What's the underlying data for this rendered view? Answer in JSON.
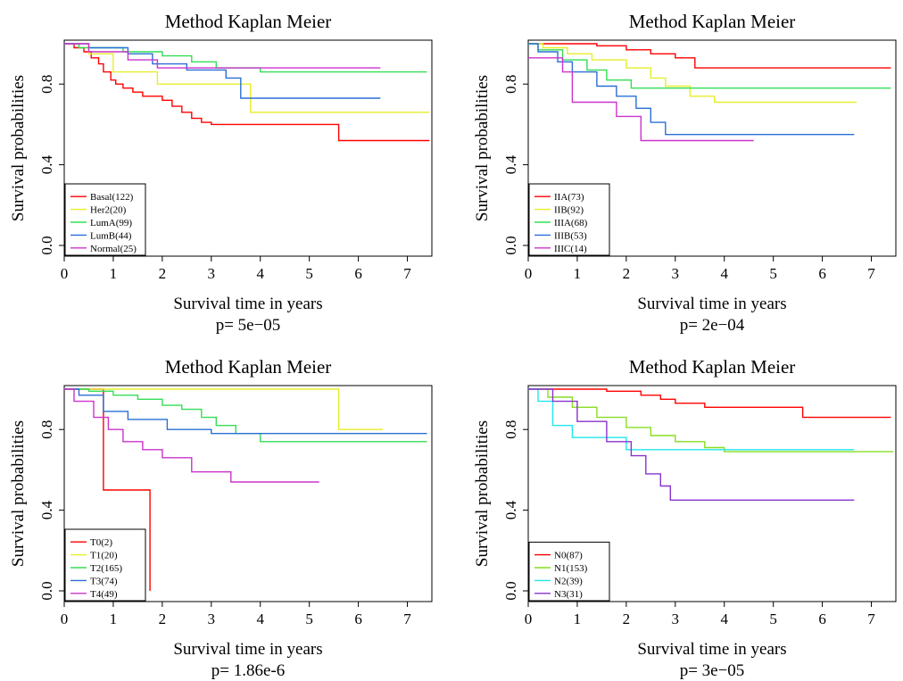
{
  "figure_title": "",
  "chart_data": [
    {
      "type": "line",
      "title": "Method Kaplan Meier",
      "xlabel": "Survival time in years",
      "ylabel": "Survival probabilities",
      "pvalue": "p= 5e−05",
      "xlim": [
        0,
        7.5
      ],
      "ylim": [
        0,
        1
      ],
      "xticks": [
        0,
        1,
        2,
        3,
        4,
        5,
        6,
        7
      ],
      "yticks": [
        0.0,
        0.4,
        0.8
      ],
      "yticklabels": [
        "0.0",
        "0.4",
        "0.8"
      ],
      "legend_position": "bottom-left",
      "series": [
        {
          "name": "Basal(122)",
          "color": "#ff0000",
          "x": [
            0,
            0.2,
            0.4,
            0.55,
            0.7,
            0.8,
            0.95,
            1.05,
            1.2,
            1.4,
            1.6,
            1.8,
            2.0,
            2.2,
            2.4,
            2.6,
            2.8,
            3.0,
            5.6,
            7.45
          ],
          "y": [
            1.0,
            0.98,
            0.96,
            0.93,
            0.9,
            0.86,
            0.82,
            0.8,
            0.78,
            0.76,
            0.74,
            0.74,
            0.72,
            0.69,
            0.66,
            0.63,
            0.61,
            0.6,
            0.52,
            0.52
          ]
        },
        {
          "name": "Her2(20)",
          "color": "#e6ee2a",
          "x": [
            0,
            0.5,
            1.0,
            1.9,
            3.8,
            7.45
          ],
          "y": [
            1.0,
            0.95,
            0.86,
            0.8,
            0.66,
            0.66
          ]
        },
        {
          "name": "LumA(99)",
          "color": "#33dd55",
          "x": [
            0,
            0.3,
            1.2,
            2.0,
            2.6,
            3.1,
            4.0,
            7.4
          ],
          "y": [
            1.0,
            0.98,
            0.96,
            0.94,
            0.91,
            0.88,
            0.86,
            0.86
          ]
        },
        {
          "name": "LumB(44)",
          "color": "#2a6ed6",
          "x": [
            0,
            0.5,
            1.3,
            1.8,
            2.5,
            3.3,
            3.6,
            6.45
          ],
          "y": [
            1.0,
            0.98,
            0.95,
            0.9,
            0.87,
            0.83,
            0.73,
            0.73
          ]
        },
        {
          "name": "Normal(25)",
          "color": "#cc33cc",
          "x": [
            0,
            0.5,
            1.3,
            1.9,
            6.45
          ],
          "y": [
            1.0,
            0.96,
            0.92,
            0.88,
            0.88
          ]
        }
      ]
    },
    {
      "type": "line",
      "title": "Method Kaplan Meier",
      "xlabel": "Survival time in years",
      "ylabel": "Survival probabilities",
      "pvalue": "p= 2e−04",
      "xlim": [
        0,
        7.5
      ],
      "ylim": [
        0,
        1
      ],
      "xticks": [
        0,
        1,
        2,
        3,
        4,
        5,
        6,
        7
      ],
      "yticks": [
        0.0,
        0.4,
        0.8
      ],
      "yticklabels": [
        "0.0",
        "0.4",
        "0.8"
      ],
      "legend_position": "bottom-left",
      "series": [
        {
          "name": "IIA(73)",
          "color": "#ff0000",
          "x": [
            0,
            1.4,
            2.0,
            2.5,
            3.0,
            3.4,
            7.4
          ],
          "y": [
            1.0,
            0.99,
            0.97,
            0.95,
            0.93,
            0.88,
            0.88
          ]
        },
        {
          "name": "IIB(92)",
          "color": "#e6ee2a",
          "x": [
            0,
            0.3,
            0.8,
            1.3,
            2.0,
            2.5,
            2.8,
            3.3,
            3.8,
            6.7
          ],
          "y": [
            1.0,
            0.98,
            0.95,
            0.92,
            0.88,
            0.83,
            0.79,
            0.74,
            0.71,
            0.71
          ]
        },
        {
          "name": "IIIA(68)",
          "color": "#33dd55",
          "x": [
            0,
            0.2,
            0.7,
            1.2,
            1.6,
            2.1,
            7.4
          ],
          "y": [
            1.0,
            0.97,
            0.92,
            0.87,
            0.82,
            0.78,
            0.78
          ]
        },
        {
          "name": "IIIB(53)",
          "color": "#2a6ed6",
          "x": [
            0,
            0.2,
            0.6,
            0.9,
            1.4,
            1.8,
            2.2,
            2.5,
            2.8,
            6.65
          ],
          "y": [
            1.0,
            0.96,
            0.91,
            0.86,
            0.79,
            0.74,
            0.68,
            0.61,
            0.55,
            0.55
          ]
        },
        {
          "name": "IIIC(14)",
          "color": "#cc33cc",
          "x": [
            0,
            0.7,
            0.9,
            1.8,
            2.3,
            4.6
          ],
          "y": [
            0.93,
            0.86,
            0.71,
            0.64,
            0.52,
            0.52
          ]
        }
      ]
    },
    {
      "type": "line",
      "title": "Method Kaplan Meier",
      "xlabel": "Survival time in years",
      "ylabel": "Survival probabilities",
      "pvalue": "p= 1.86e-6",
      "xlim": [
        0,
        7.5
      ],
      "ylim": [
        0,
        1
      ],
      "xticks": [
        0,
        1,
        2,
        3,
        4,
        5,
        6,
        7
      ],
      "yticks": [
        0.0,
        0.4,
        0.8
      ],
      "yticklabels": [
        "0.0",
        "0.4",
        "0.8"
      ],
      "legend_position": "bottom-left",
      "series": [
        {
          "name": "T0(2)",
          "color": "#ff0000",
          "x": [
            0,
            0.8,
            1.75,
            1.75
          ],
          "y": [
            1.0,
            0.5,
            0.0,
            0.0
          ]
        },
        {
          "name": "T1(20)",
          "color": "#e6ee2a",
          "x": [
            0,
            5.6,
            6.5
          ],
          "y": [
            1.0,
            0.8,
            0.8
          ]
        },
        {
          "name": "T2(165)",
          "color": "#33dd55",
          "x": [
            0,
            0.5,
            1.0,
            1.5,
            2.0,
            2.4,
            2.8,
            3.1,
            3.5,
            4.0,
            7.4
          ],
          "y": [
            1.0,
            0.99,
            0.97,
            0.95,
            0.92,
            0.9,
            0.86,
            0.82,
            0.78,
            0.74,
            0.74
          ]
        },
        {
          "name": "T3(74)",
          "color": "#2a6ed6",
          "x": [
            0,
            0.3,
            0.8,
            1.3,
            2.1,
            3.0,
            7.4
          ],
          "y": [
            1.0,
            0.97,
            0.89,
            0.85,
            0.8,
            0.78,
            0.78
          ]
        },
        {
          "name": "T4(49)",
          "color": "#cc33cc",
          "x": [
            0,
            0.2,
            0.6,
            0.9,
            1.2,
            1.6,
            2.0,
            2.6,
            3.4,
            5.2
          ],
          "y": [
            1.0,
            0.94,
            0.86,
            0.8,
            0.74,
            0.7,
            0.66,
            0.59,
            0.54,
            0.54
          ]
        }
      ]
    },
    {
      "type": "line",
      "title": "Method Kaplan Meier",
      "xlabel": "Survival time in years",
      "ylabel": "Survival probabilities",
      "pvalue": "p= 3e−05",
      "xlim": [
        0,
        7.5
      ],
      "ylim": [
        0,
        1
      ],
      "xticks": [
        0,
        1,
        2,
        3,
        4,
        5,
        6,
        7
      ],
      "yticks": [
        0.0,
        0.4,
        0.8
      ],
      "yticklabels": [
        "0.0",
        "0.4",
        "0.8"
      ],
      "legend_position": "bottom-left",
      "series": [
        {
          "name": "N0(87)",
          "color": "#ff0000",
          "x": [
            0,
            1.6,
            2.3,
            2.7,
            3.0,
            3.6,
            5.6,
            7.4
          ],
          "y": [
            1.0,
            0.99,
            0.97,
            0.95,
            0.93,
            0.91,
            0.86,
            0.86
          ]
        },
        {
          "name": "N1(153)",
          "color": "#88dd22",
          "x": [
            0,
            0.4,
            0.9,
            1.4,
            2.0,
            2.5,
            3.0,
            3.6,
            4.0,
            7.45
          ],
          "y": [
            1.0,
            0.96,
            0.91,
            0.86,
            0.81,
            0.77,
            0.74,
            0.71,
            0.69,
            0.69
          ]
        },
        {
          "name": "N2(39)",
          "color": "#22e6ee",
          "x": [
            0,
            0.2,
            0.5,
            0.9,
            2.0,
            6.65
          ],
          "y": [
            1.0,
            0.94,
            0.82,
            0.76,
            0.7,
            0.7
          ]
        },
        {
          "name": "N3(31)",
          "color": "#8833cc",
          "x": [
            0,
            0.5,
            1.0,
            1.6,
            2.1,
            2.4,
            2.7,
            2.9,
            6.65
          ],
          "y": [
            1.0,
            0.94,
            0.84,
            0.74,
            0.67,
            0.58,
            0.52,
            0.45,
            0.45
          ]
        }
      ]
    }
  ]
}
